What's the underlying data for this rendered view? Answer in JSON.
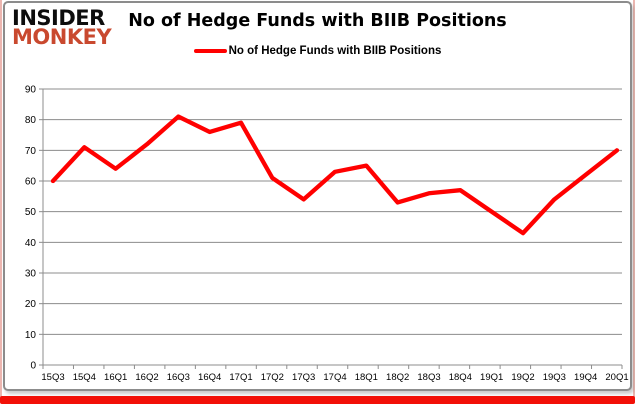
{
  "logo": {
    "line1": "INSIDER",
    "line2": "MONKEY"
  },
  "header": {
    "title": "No of Hedge Funds with BIIB Positions"
  },
  "legend": {
    "label": "No of Hedge Funds with BIIB Positions",
    "color": "#ff0000"
  },
  "chart_data": {
    "type": "line",
    "title": "No of Hedge Funds with BIIB Positions",
    "categories": [
      "15Q3",
      "15Q4",
      "16Q1",
      "16Q2",
      "16Q3",
      "16Q4",
      "17Q1",
      "17Q2",
      "17Q3",
      "17Q4",
      "18Q1",
      "18Q2",
      "18Q3",
      "18Q4",
      "19Q1",
      "19Q2",
      "19Q3",
      "19Q4",
      "20Q1"
    ],
    "series": [
      {
        "name": "No of Hedge Funds with BIIB Positions",
        "color": "#ff0000",
        "values": [
          60,
          71,
          64,
          72,
          81,
          76,
          79,
          61,
          54,
          63,
          65,
          53,
          56,
          57,
          50,
          43,
          54,
          62,
          70
        ]
      }
    ],
    "ylim": [
      0,
      90
    ],
    "ytick_step": 10,
    "ytick_labels": [
      "0",
      "10",
      "20",
      "30",
      "40",
      "50",
      "60",
      "70",
      "80",
      "90"
    ],
    "grid": true,
    "legend_position": "top"
  },
  "colors": {
    "line_red": "#ff0000",
    "logo_red": "#c9492f",
    "grid_gray": "#8c8c8c",
    "panel_border": "#8c8c8c",
    "frame_pink": "#ecb6b0",
    "bottom_bar_red": "#f21007",
    "text": "#000000"
  }
}
